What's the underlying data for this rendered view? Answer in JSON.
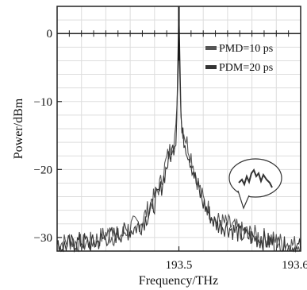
{
  "chart_data": {
    "type": "line",
    "xlabel": "Frequency/THz",
    "ylabel": "Power/dBm",
    "xlim": [
      193.4,
      193.6
    ],
    "ylim": [
      -32,
      4
    ],
    "x_ticks": [
      {
        "value": 193.5,
        "label": "193.5"
      },
      {
        "value": 193.6,
        "label": "193.6"
      }
    ],
    "y_ticks": [
      {
        "value": 0,
        "label": "0"
      },
      {
        "value": -10,
        "label": "−10"
      },
      {
        "value": -20,
        "label": "−20"
      },
      {
        "value": -30,
        "label": "−30"
      }
    ],
    "grid": true,
    "legend_position": "top-right",
    "series": [
      {
        "name": "PMD=10 ps",
        "color": "#555555",
        "x": [
          193.4,
          193.41,
          193.42,
          193.43,
          193.44,
          193.45,
          193.46,
          193.47,
          193.48,
          193.485,
          193.49,
          193.495,
          193.498,
          193.5,
          193.502,
          193.505,
          193.51,
          193.515,
          193.52,
          193.53,
          193.54,
          193.55,
          193.56,
          193.57,
          193.58,
          193.59,
          193.6
        ],
        "y": [
          -31,
          -30.5,
          -31,
          -30.5,
          -29.5,
          -30,
          -28.5,
          -27.5,
          -24,
          -22,
          -18.5,
          -16,
          -14,
          -2,
          -13.5,
          -15,
          -18,
          -21.5,
          -24.5,
          -27.5,
          -28,
          -29,
          -29.5,
          -30,
          -30.5,
          -31,
          -31
        ]
      },
      {
        "name": "PDM=20 ps",
        "color": "#333333",
        "x": [
          193.4,
          193.41,
          193.42,
          193.43,
          193.44,
          193.45,
          193.46,
          193.47,
          193.48,
          193.485,
          193.49,
          193.495,
          193.498,
          193.5,
          193.502,
          193.505,
          193.51,
          193.515,
          193.52,
          193.53,
          193.54,
          193.55,
          193.56,
          193.57,
          193.58,
          193.59,
          193.6
        ],
        "y": [
          -31.5,
          -31,
          -30.5,
          -31,
          -30,
          -29.5,
          -29,
          -28,
          -25,
          -23,
          -19.5,
          -17,
          -15,
          4,
          -14.5,
          -16,
          -19,
          -22.5,
          -25,
          -28,
          -28.5,
          -29.5,
          -30,
          -30.5,
          -31,
          -31.5,
          -31.5
        ]
      }
    ]
  }
}
